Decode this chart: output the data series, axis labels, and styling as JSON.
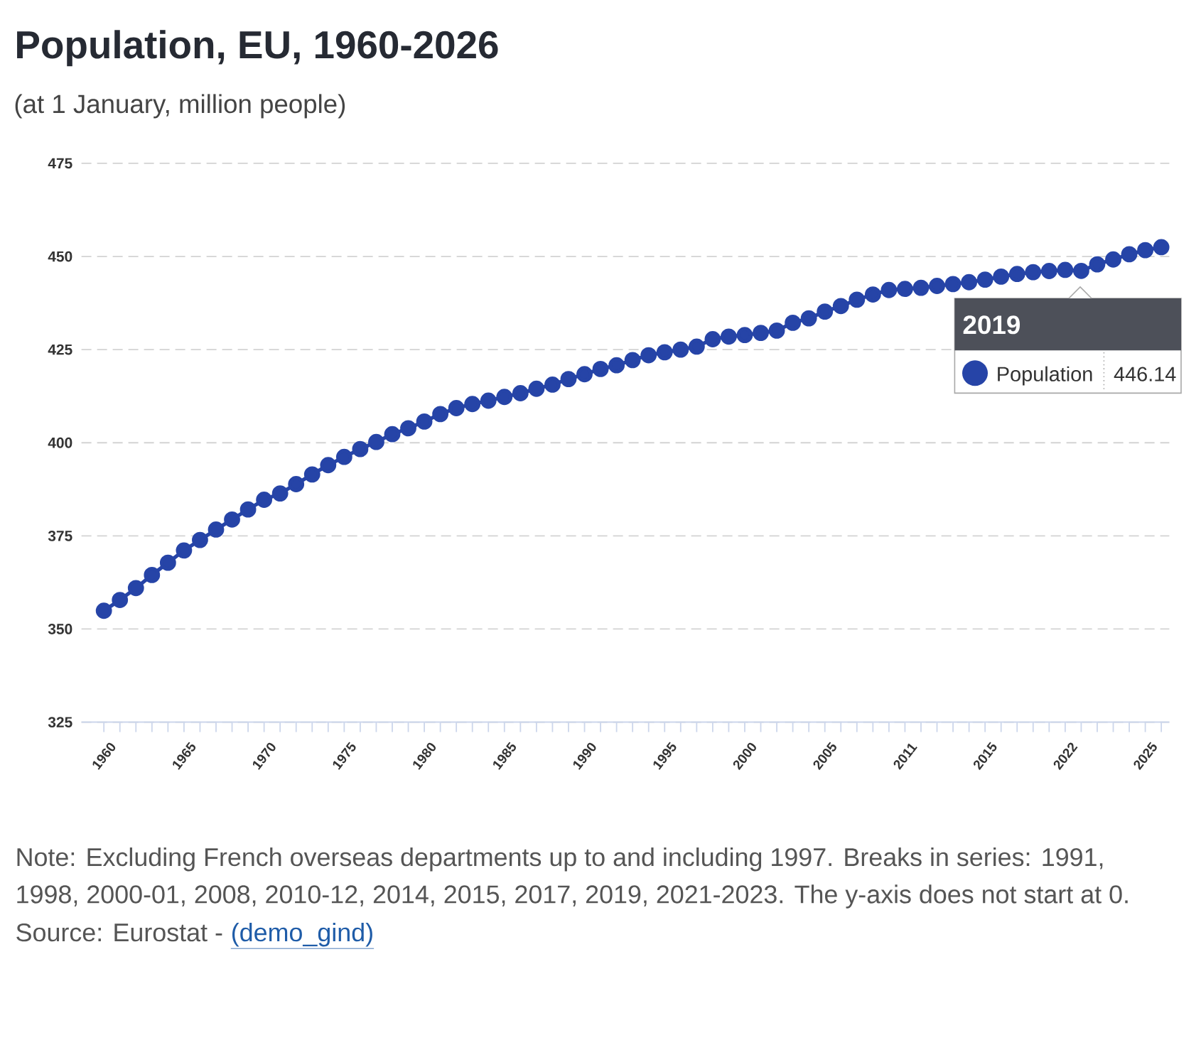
{
  "chart_data": {
    "type": "line",
    "title": "Population, EU, 1960-2026",
    "subtitle": "(at 1 January, million people)",
    "categories": [
      "1960",
      null,
      null,
      null,
      null,
      "1965",
      null,
      null,
      null,
      null,
      "1970",
      null,
      null,
      null,
      null,
      "1975",
      null,
      null,
      null,
      null,
      "1980",
      null,
      null,
      null,
      null,
      "1985",
      null,
      null,
      null,
      null,
      "1990",
      null,
      null,
      null,
      null,
      "1995",
      null,
      null,
      null,
      null,
      "2000",
      null,
      null,
      null,
      null,
      "2005",
      null,
      null,
      null,
      null,
      "2011",
      null,
      null,
      null,
      null,
      "2015",
      null,
      null,
      null,
      null,
      "2022",
      null,
      null,
      null,
      null,
      "2025",
      null
    ],
    "series": [
      {
        "name": "Population",
        "color": "#2644a7",
        "values": [
          354.9,
          357.8,
          361.0,
          364.5,
          367.8,
          371.1,
          373.9,
          376.7,
          379.4,
          382.1,
          384.7,
          386.4,
          388.9,
          391.5,
          394.0,
          396.2,
          398.3,
          400.2,
          402.3,
          403.9,
          405.7,
          407.7,
          409.3,
          410.4,
          411.3,
          412.3,
          413.3,
          414.5,
          415.6,
          417.1,
          418.4,
          419.8,
          420.8,
          422.2,
          423.5,
          424.3,
          425.0,
          425.8,
          427.8,
          428.5,
          428.9,
          429.5,
          430.1,
          432.2,
          433.4,
          435.2,
          436.7,
          438.4,
          439.8,
          441.0,
          441.3,
          441.6,
          442.1,
          442.6,
          443.1,
          443.8,
          444.6,
          445.3,
          445.8,
          446.1,
          446.4,
          446.14,
          447.9,
          449.2,
          450.6,
          451.7,
          452.5
        ]
      }
    ],
    "ylim": [
      325,
      475
    ],
    "yticks": [
      325,
      350,
      375,
      400,
      425,
      450,
      475
    ],
    "grid": "y",
    "marker": "circle",
    "annotations": [
      "2019",
      "446.14",
      "Note: Excluding French overseas departments up to and including 1997. Breaks in series: 1991, 1998, 2000-01, 2008, 2010-12, 2014, 2015, 2017, 2019, 2021-2023. The y-axis does not start at 0.",
      "Source: Eurostat -",
      "(demo_gind)"
    ]
  }
}
